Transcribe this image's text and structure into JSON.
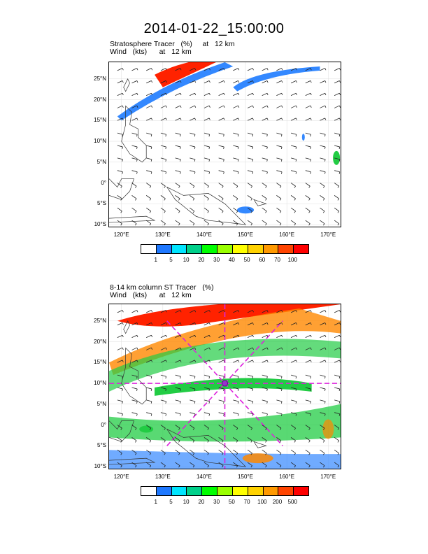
{
  "title": "2014-01-22_15:00:00",
  "panels": [
    {
      "subtitle_line1": "Stratosphere Tracer   (%)     at   12 km",
      "subtitle_line2": "Wind   (kts)      at   12 km",
      "lat_labels": [
        "25°N",
        "20°N",
        "15°N",
        "10°N",
        "5°N",
        "0°",
        "5°S",
        "10°S"
      ],
      "lon_labels": [
        "120°E",
        "130°E",
        "140°E",
        "150°E",
        "160°E",
        "170°E"
      ],
      "colorbar_labels": [
        "1",
        "5",
        "10",
        "20",
        "30",
        "40",
        "50",
        "60",
        "70",
        "100"
      ],
      "colorbar_colors": [
        "#ffffff",
        "#1e78ff",
        "#00e5ff",
        "#00d08a",
        "#00ff00",
        "#9aff00",
        "#ffff00",
        "#ffd200",
        "#ff9900",
        "#ff4400",
        "#ff0000"
      ]
    },
    {
      "subtitle_line1": "8-14 km column ST Tracer   (%)",
      "subtitle_line2": "Wind   (kts)      at   12 km",
      "lat_labels": [
        "25°N",
        "20°N",
        "15°N",
        "10°N",
        "5°N",
        "0°",
        "5°S",
        "10°S"
      ],
      "lon_labels": [
        "120°E",
        "130°E",
        "140°E",
        "150°E",
        "160°E",
        "170°E"
      ],
      "colorbar_labels": [
        "1",
        "5",
        "10",
        "20",
        "30",
        "50",
        "70",
        "100",
        "200",
        "500"
      ],
      "colorbar_colors": [
        "#ffffff",
        "#1e78ff",
        "#00e5ff",
        "#00d08a",
        "#00ff00",
        "#9aff00",
        "#ffff00",
        "#ffd200",
        "#ff9900",
        "#ff4400",
        "#ff0000"
      ]
    }
  ],
  "map_extent": {
    "lon": [
      117,
      173
    ],
    "lat": [
      -10.5,
      29
    ]
  },
  "colors": {
    "tracer_red": "#ff2200",
    "tracer_orange": "#ff8800",
    "tracer_green": "#22cc44",
    "tracer_blue": "#3388ff",
    "cross_line": "#dd22dd"
  }
}
